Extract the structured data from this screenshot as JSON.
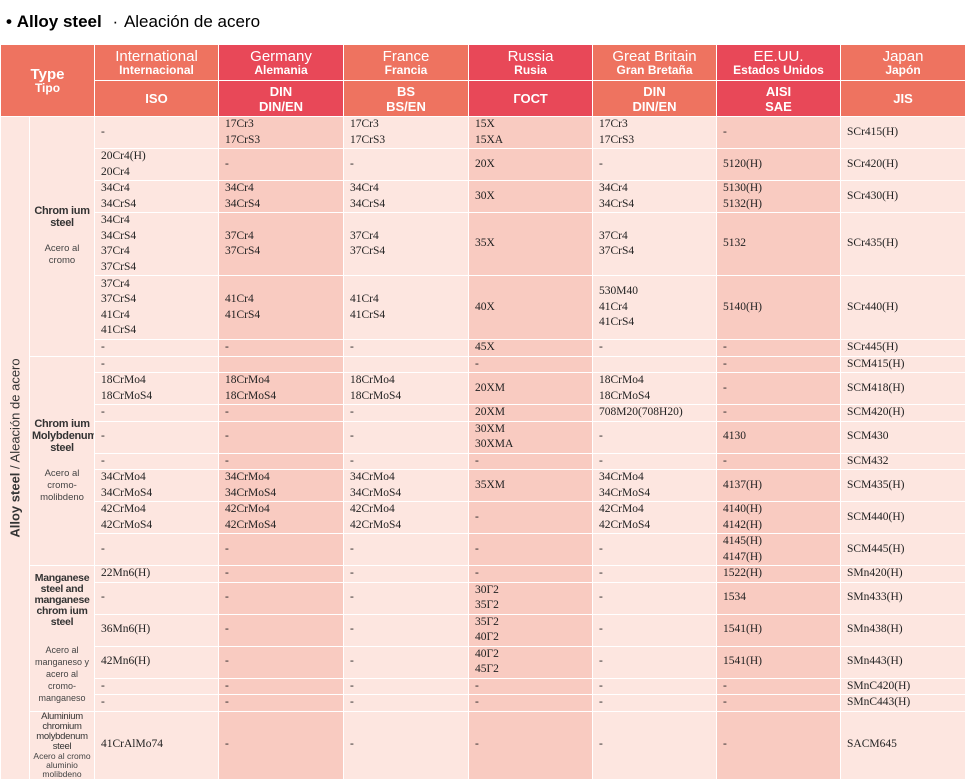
{
  "title": {
    "bullet": "•",
    "en": "Alloy steel",
    "sep": "·",
    "es": "Aleación de acero"
  },
  "header": {
    "type": {
      "en": "Type",
      "es": "Tipo"
    },
    "countries": [
      {
        "en": "International",
        "es": "Internacional",
        "std": "ISO"
      },
      {
        "en": "Germany",
        "es": "Alemania",
        "std": "DIN\nDIN/EN"
      },
      {
        "en": "France",
        "es": "Francia",
        "std": "BS\nBS/EN"
      },
      {
        "en": "Russia",
        "es": "Rusia",
        "std": "ГОСТ"
      },
      {
        "en": "Great Britain",
        "es": "Gran Bretaña",
        "std": "DIN\nDIN/EN"
      },
      {
        "en": "EE.UU.",
        "es": "Estados Unidos",
        "std": "AISI\nSAE"
      },
      {
        "en": "Japan",
        "es": "Japón",
        "std": "JIS"
      }
    ]
  },
  "side_label": {
    "en": "Alloy steel",
    "sep": " / ",
    "es": "Aleación de acero"
  },
  "groups": [
    {
      "en": "Chrom ium steel",
      "es": "Acero al cromo",
      "rows": [
        [
          "-",
          "17Cr3\n17CrS3",
          "17Cr3\n17CrS3",
          "15X\n15XA",
          "17Cr3\n17CrS3",
          "-",
          "SCr415(H)"
        ],
        [
          "20Cr4(H)\n20Cr4",
          "-",
          "-",
          "20X",
          "-",
          "5120(H)",
          "SCr420(H)"
        ],
        [
          "34Cr4\n34CrS4",
          "34Cr4\n34CrS4",
          "34Cr4\n34CrS4",
          "30X",
          "34Cr4\n34CrS4",
          "5130(H)\n5132(H)",
          "SCr430(H)"
        ],
        [
          "34Cr4\n34CrS4\n37Cr4\n37CrS4",
          "37Cr4\n37CrS4",
          "37Cr4\n37CrS4",
          "35X",
          "37Cr4\n37CrS4",
          "5132",
          "SCr435(H)"
        ],
        [
          "37Cr4\n37CrS4\n41Cr4\n41CrS4",
          "41Cr4\n41CrS4",
          "41Cr4\n41CrS4",
          "40X",
          "530M40\n41Cr4\n41CrS4",
          "5140(H)",
          "SCr440(H)"
        ],
        [
          "-",
          "-",
          "-",
          "45X",
          "-",
          "-",
          "SCr445(H)"
        ]
      ]
    },
    {
      "en": "Chrom ium Molybdenum steel",
      "es": "Acero al cromo-molibdeno",
      "rows": [
        [
          "-",
          "",
          "",
          "-",
          "",
          "-",
          "SCM415(H)"
        ],
        [
          "18CrMo4\n18CrMoS4",
          "18CrMo4\n18CrMoS4",
          "18CrMo4\n18CrMoS4",
          "20XM",
          "18CrMo4\n18CrMoS4",
          "-",
          "SCM418(H)"
        ],
        [
          "-",
          "-",
          "-",
          "20XM",
          "708M20(708H20)",
          "-",
          "SCM420(H)"
        ],
        [
          "-",
          "-",
          "-",
          "30XM\n30XMA",
          "-",
          "4130",
          "SCM430"
        ],
        [
          "-",
          "-",
          "-",
          "-",
          "-",
          "-",
          "SCM432"
        ],
        [
          "34CrMo4\n34CrMoS4",
          "34CrMo4\n34CrMoS4",
          "34CrMo4\n34CrMoS4",
          "35XM",
          "34CrMo4\n34CrMoS4",
          "4137(H)",
          "SCM435(H)"
        ],
        [
          "42CrMo4\n42CrMoS4",
          "42CrMo4\n42CrMoS4",
          "42CrMo4\n42CrMoS4",
          "-",
          "42CrMo4\n42CrMoS4",
          "4140(H)\n4142(H)",
          "SCM440(H)"
        ],
        [
          "-",
          "-",
          "-",
          "-",
          "-",
          "4145(H)\n4147(H)",
          "SCM445(H)"
        ]
      ]
    },
    {
      "en": "Manganese steel and manganese chrom ium steel",
      "es": "Acero al manganeso y acero al cromo-manganeso",
      "rows": [
        [
          "22Mn6(H)",
          "-",
          "-",
          "-",
          "-",
          "1522(H)",
          "SMn420(H)"
        ],
        [
          "-",
          "-",
          "-",
          "30Г2\n35Г2",
          "-",
          "1534",
          "SMn433(H)"
        ],
        [
          "36Mn6(H)",
          "-",
          "-",
          "35Г2\n40Г2",
          "-",
          "1541(H)",
          "SMn438(H)"
        ],
        [
          "42Mn6(H)",
          "-",
          "-",
          "40Г2\n45Г2",
          "-",
          "1541(H)",
          "SMn443(H)"
        ],
        [
          "-",
          "-",
          "-",
          "-",
          "-",
          "-",
          "SMnC420(H)"
        ],
        [
          "-",
          "-",
          "-",
          "-",
          "-",
          "-",
          "SMnC443(H)"
        ]
      ]
    },
    {
      "en": "Aluminium chromium molybdenum steel",
      "es": "Acero al cromo aluminio molibdeno",
      "rows": [
        [
          "41CrAlMo74",
          "-",
          "-",
          "-",
          "-",
          "-",
          "SACM645"
        ]
      ]
    }
  ]
}
